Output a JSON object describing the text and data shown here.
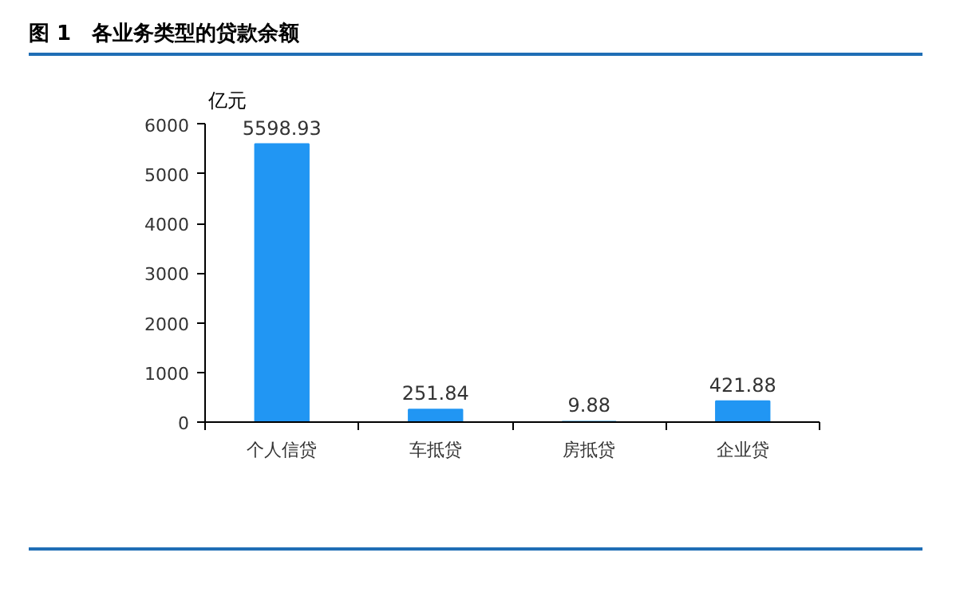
{
  "chart_data": {
    "type": "bar",
    "title": "图 1　各业务类型的贷款余额",
    "ylabel": "亿元",
    "categories": [
      "个人信贷",
      "车抵贷",
      "房抵贷",
      "企业贷"
    ],
    "values": [
      5598.93,
      251.84,
      9.88,
      421.88
    ],
    "color": "#2196f3",
    "ylim": [
      0,
      6000
    ],
    "yticks": [
      0,
      1000,
      2000,
      3000,
      4000,
      5000,
      6000
    ],
    "data_labels": true,
    "grid": false
  }
}
